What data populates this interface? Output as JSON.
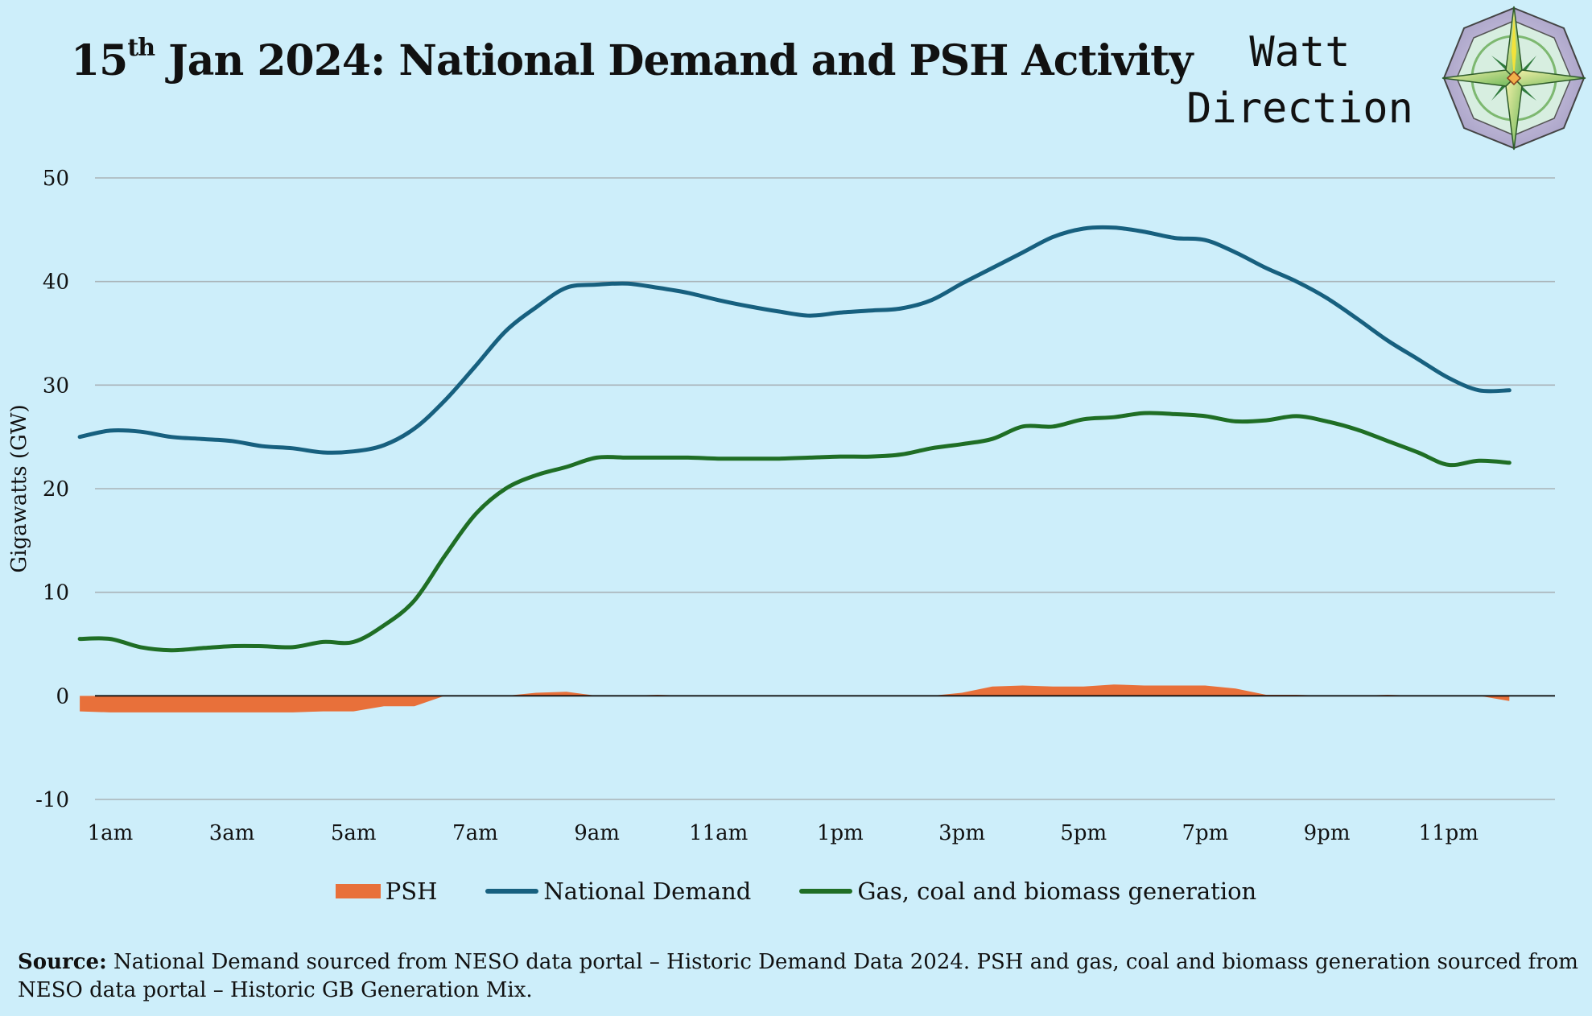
{
  "title": {
    "prefix": "15",
    "superscript": "th",
    "rest": " Jan 2024: National Demand and PSH Activity"
  },
  "brand": {
    "line1": "Watt",
    "line2": "Direction"
  },
  "source": {
    "label": "Source:",
    "text": " National Demand sourced from NESO data portal – Historic Demand Data 2024. PSH and gas, coal and biomass generation sourced from NESO data portal – Historic GB Generation Mix."
  },
  "colors": {
    "background": "#cdeefa",
    "psh": "#e8703a",
    "national_demand": "#17607f",
    "gas_coal_biomass": "#1f6e25",
    "gridline": "#a9b3b8",
    "zero_line": "#111111"
  },
  "chart_data": {
    "type": "line",
    "ylabel": "Gigawatts (GW)",
    "ylim": [
      -10,
      50
    ],
    "yticks": [
      -10,
      0,
      10,
      20,
      30,
      40,
      50
    ],
    "xlim": [
      0.75,
      24.75
    ],
    "x_tick_labels": [
      "1am",
      "3am",
      "5am",
      "7am",
      "9am",
      "11am",
      "1pm",
      "3pm",
      "5pm",
      "7pm",
      "9pm",
      "11pm"
    ],
    "x_tick_hours": [
      1,
      3,
      5,
      7,
      9,
      11,
      13,
      15,
      17,
      19,
      21,
      23
    ],
    "x_unit": "hour of day (24 = midnight)",
    "grid": true,
    "legend_position": "bottom",
    "x": [
      0.5,
      1.0,
      1.5,
      2.0,
      2.5,
      3.0,
      3.5,
      4.0,
      4.5,
      5.0,
      5.5,
      6.0,
      6.5,
      7.0,
      7.5,
      8.0,
      8.5,
      9.0,
      9.5,
      10.0,
      10.5,
      11.0,
      11.5,
      12.0,
      12.5,
      13.0,
      13.5,
      14.0,
      14.5,
      15.0,
      15.5,
      16.0,
      16.5,
      17.0,
      17.5,
      18.0,
      18.5,
      19.0,
      19.5,
      20.0,
      20.5,
      21.0,
      21.5,
      22.0,
      22.5,
      23.0,
      23.5,
      24.0
    ],
    "series": [
      {
        "name": "PSH",
        "type": "area",
        "values": [
          -1.5,
          -1.6,
          -1.6,
          -1.6,
          -1.6,
          -1.6,
          -1.6,
          -1.6,
          -1.5,
          -1.5,
          -1.0,
          -1.0,
          0.0,
          0.0,
          0.0,
          0.3,
          0.4,
          0.0,
          0.0,
          0.1,
          0.0,
          0.0,
          0.0,
          0.0,
          0.0,
          0.0,
          0.0,
          0.0,
          0.0,
          0.3,
          0.9,
          1.0,
          0.9,
          0.9,
          1.1,
          1.0,
          1.0,
          1.0,
          0.7,
          0.1,
          0.1,
          0.0,
          0.0,
          0.1,
          0.0,
          0.0,
          0.0,
          -0.5
        ]
      },
      {
        "name": "National Demand",
        "type": "line",
        "values": [
          25.0,
          25.6,
          25.5,
          25.0,
          24.8,
          24.6,
          24.1,
          23.9,
          23.5,
          23.6,
          24.2,
          25.8,
          28.5,
          31.8,
          35.2,
          37.5,
          39.4,
          39.7,
          39.8,
          39.4,
          38.9,
          38.2,
          37.6,
          37.1,
          36.7,
          37.0,
          37.2,
          37.4,
          38.2,
          39.8,
          41.3,
          42.8,
          44.3,
          45.1,
          45.2,
          44.8,
          44.2,
          44.0,
          42.8,
          41.3,
          40.0,
          38.4,
          36.4,
          34.3,
          32.5,
          30.7,
          29.5,
          29.5
        ]
      },
      {
        "name": "Gas, coal and biomass generation",
        "type": "line",
        "values": [
          5.5,
          5.5,
          4.7,
          4.4,
          4.6,
          4.8,
          4.8,
          4.7,
          5.2,
          5.2,
          6.8,
          9.2,
          13.5,
          17.5,
          20.0,
          21.3,
          22.1,
          23.0,
          23.0,
          23.0,
          23.0,
          22.9,
          22.9,
          22.9,
          23.0,
          23.1,
          23.1,
          23.3,
          23.9,
          24.3,
          24.8,
          26.0,
          26.0,
          26.7,
          26.9,
          27.3,
          27.2,
          27.0,
          26.5,
          26.6,
          27.0,
          26.5,
          25.7,
          24.6,
          23.5,
          22.3,
          22.7,
          22.5
        ]
      }
    ]
  }
}
